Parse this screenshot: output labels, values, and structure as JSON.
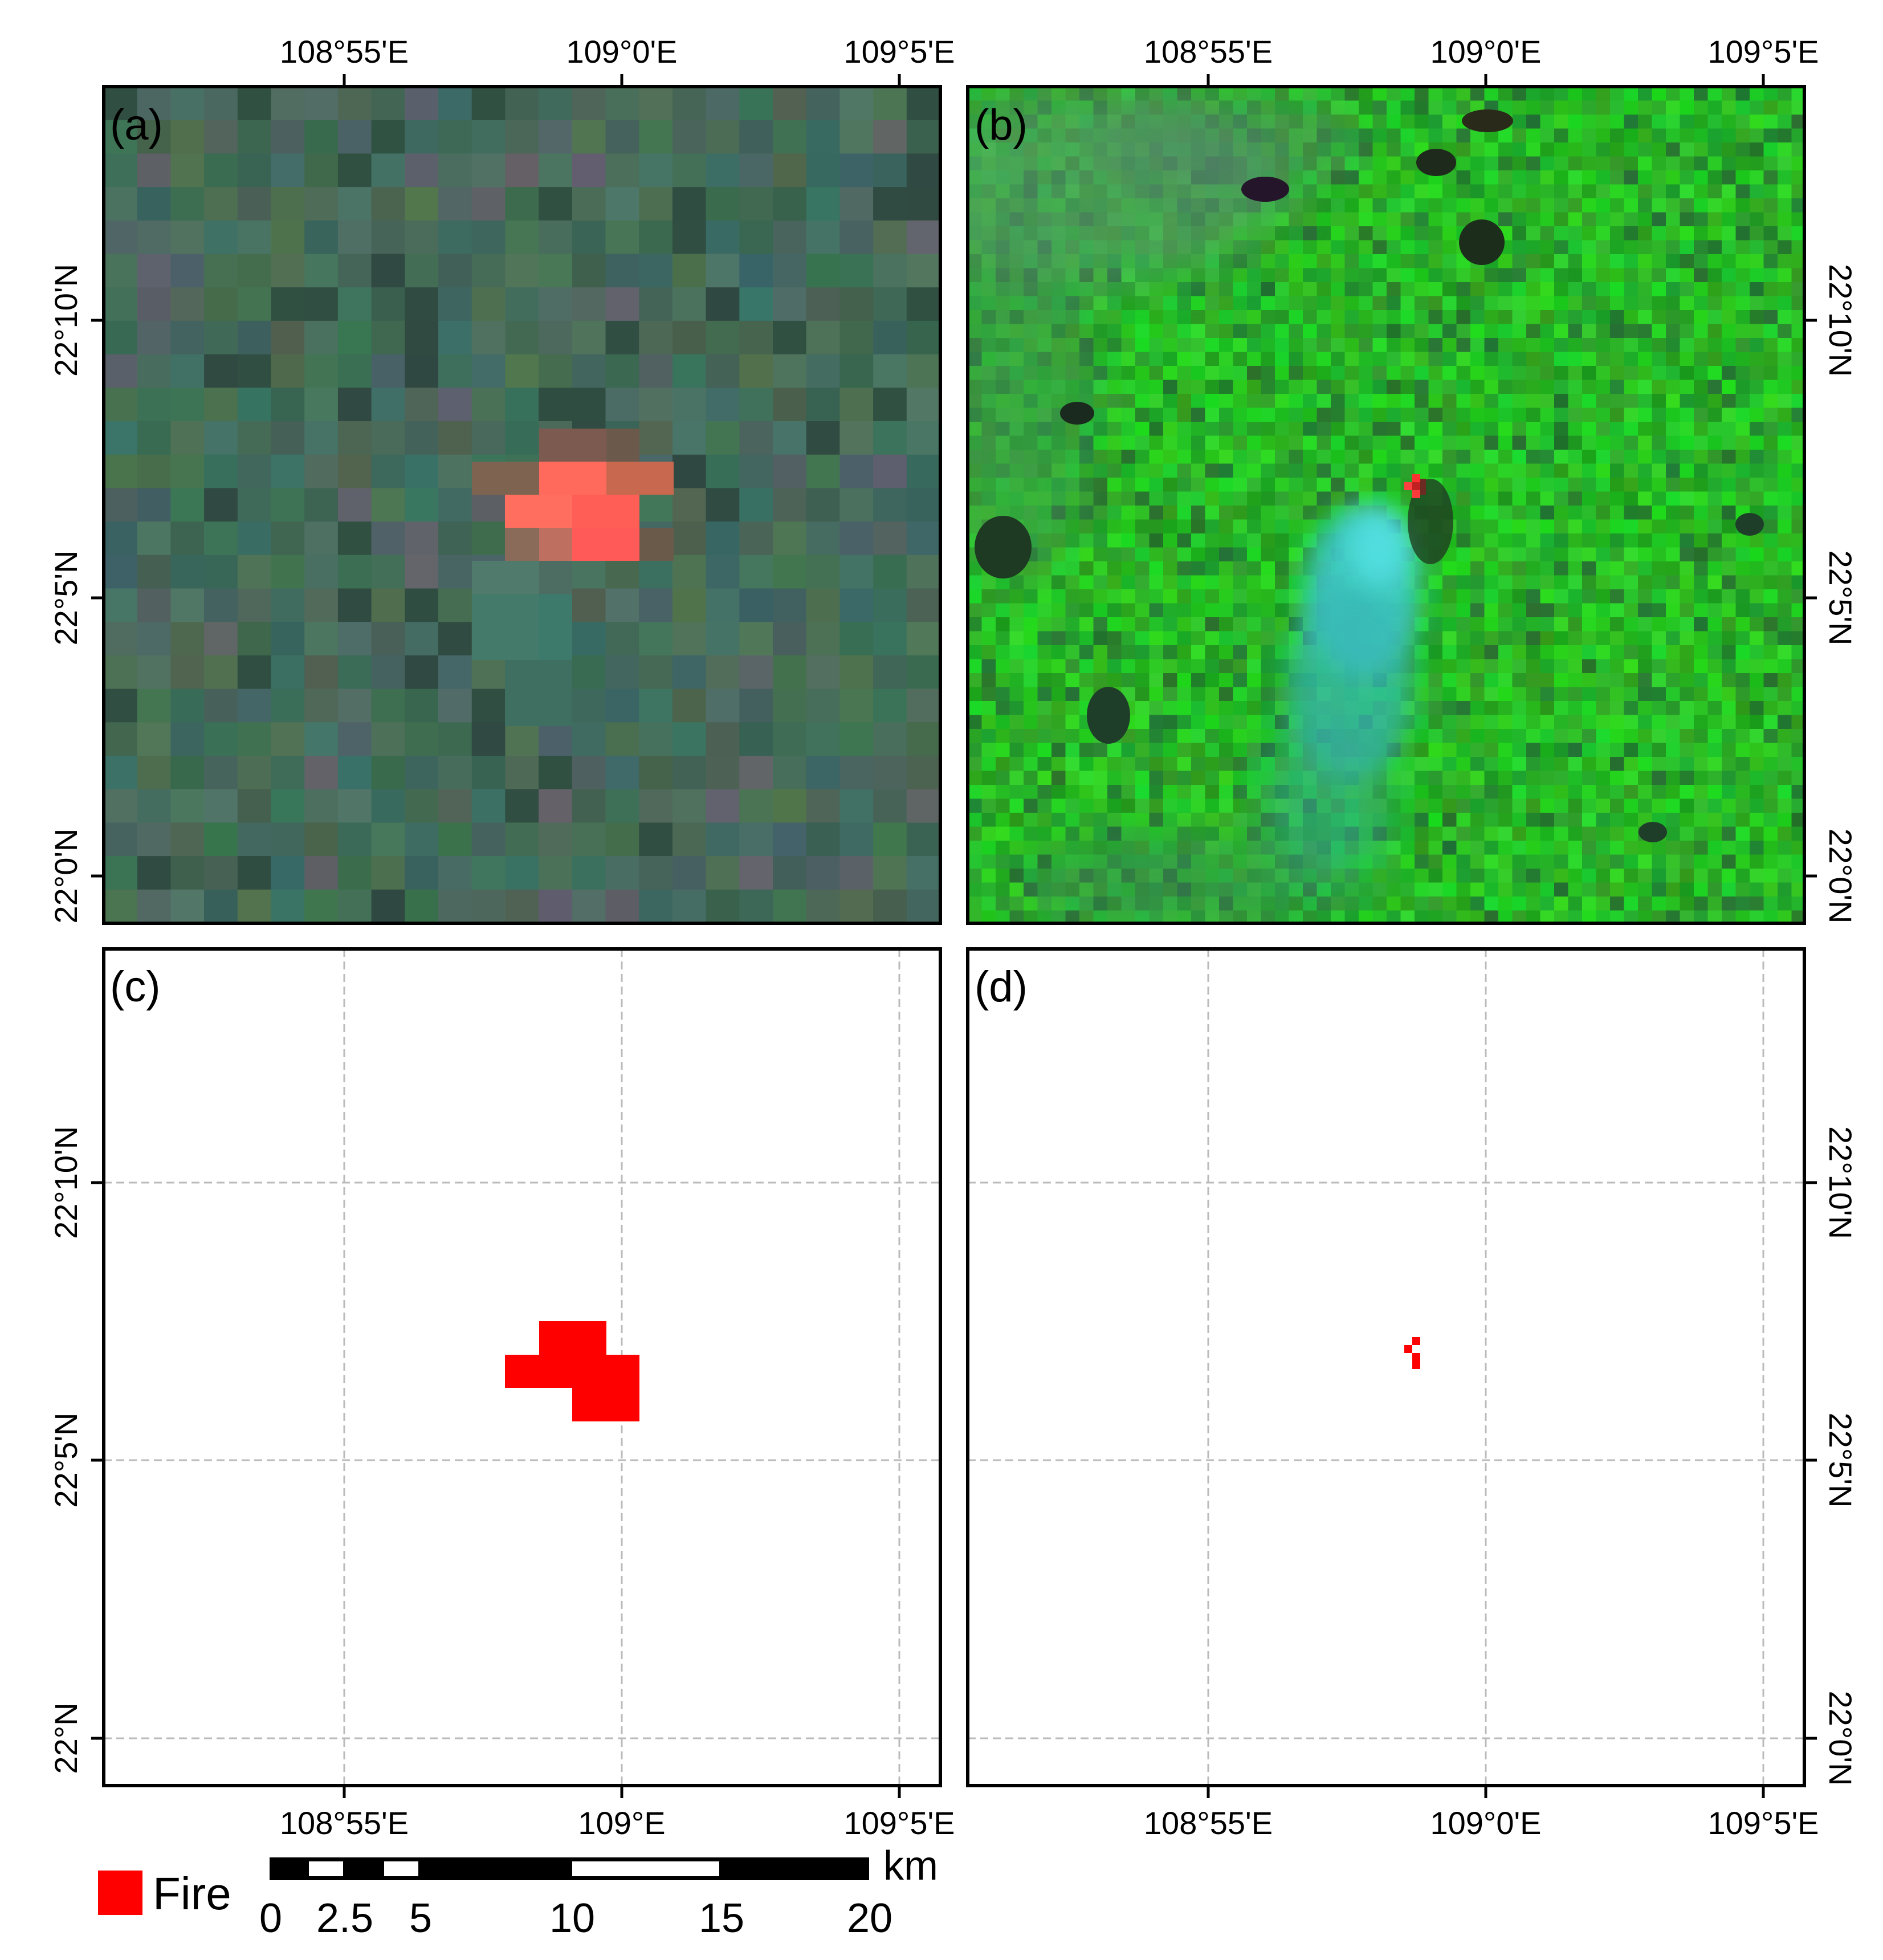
{
  "panels": [
    {
      "id": "a",
      "label": "(a)",
      "kind": "image",
      "style": "coarse"
    },
    {
      "id": "b",
      "label": "(b)",
      "kind": "image",
      "style": "fine"
    },
    {
      "id": "c",
      "label": "(c)",
      "kind": "fire-map",
      "style": "coarse"
    },
    {
      "id": "d",
      "label": "(d)",
      "kind": "fire-map",
      "style": "fine"
    }
  ],
  "axes": {
    "top_left_lon_labels": [
      "108°55'E",
      "109°0'E",
      "109°5'E"
    ],
    "top_right_lon_labels": [
      "108°55'E",
      "109°0'E",
      "109°5'E"
    ],
    "bottom_left_lon_labels": [
      "108°55'E",
      "109°E",
      "109°5'E"
    ],
    "bottom_right_lon_labels": [
      "108°55'E",
      "109°0'E",
      "109°5'E"
    ],
    "top_left_lat_labels": [
      "22°10'N",
      "22°5'N",
      "22°0'N"
    ],
    "top_right_lat_labels": [
      "22°10'N",
      "22°5'N",
      "22°0'N"
    ],
    "bottom_left_lat_labels": [
      "22°10'N",
      "22°5'N",
      "22°N"
    ],
    "bottom_right_lat_labels": [
      "22°10'N",
      "22°5'N",
      "22°0'N"
    ]
  },
  "legend": {
    "label": "Fire",
    "color": "#ff0000"
  },
  "scalebar": {
    "unit": "km",
    "ticks": [
      "0",
      "2.5",
      "5",
      "10",
      "15",
      "20"
    ]
  },
  "colors": {
    "fire": "#ff0000",
    "coarse_background": "#3d6a52",
    "fine_background": "#2fb52a",
    "smoke_plume": "#3fc8cc",
    "grid": "#bbbbbb"
  }
}
